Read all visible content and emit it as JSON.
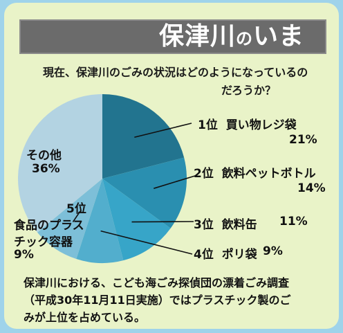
{
  "title": {
    "main": "保津川",
    "particle": "の",
    "rest": "いま"
  },
  "question": {
    "line1": "現在、保津川のごみの状況はどのようになっているの",
    "line2": "だろうか？"
  },
  "chart_data": {
    "type": "pie",
    "slices": [
      {
        "rank": "1位",
        "name": "買い物レジ袋",
        "percent": "21%",
        "value": 21,
        "color": "#22748f"
      },
      {
        "rank": "2位",
        "name": "飲料ペットボトル",
        "percent": "14%",
        "value": 14,
        "color": "#2a8fb0"
      },
      {
        "rank": "3位",
        "name": "飲料缶",
        "percent": "11%",
        "value": 11,
        "color": "#37a5c8"
      },
      {
        "rank": "4位",
        "name": "ポリ袋",
        "percent": "9%",
        "value": 9,
        "color": "#52aecd"
      },
      {
        "rank": "5位",
        "name": "食品のプラスチック容器",
        "name_line1": "食品のプラス",
        "name_line2": "チック容器",
        "percent": "9%",
        "value": 9,
        "color": "#7dbfd8"
      },
      {
        "rank": "",
        "name": "その他",
        "percent": "36%",
        "value": 36,
        "color": "#b3d3e2"
      }
    ]
  },
  "footer": {
    "line1": "保津川における、こども海ごみ探偵団の漂着ごみ調査",
    "line2": "（平成30年11月11日実施）ではプラスチック製のご",
    "line3": "みが上位を占めている。"
  }
}
